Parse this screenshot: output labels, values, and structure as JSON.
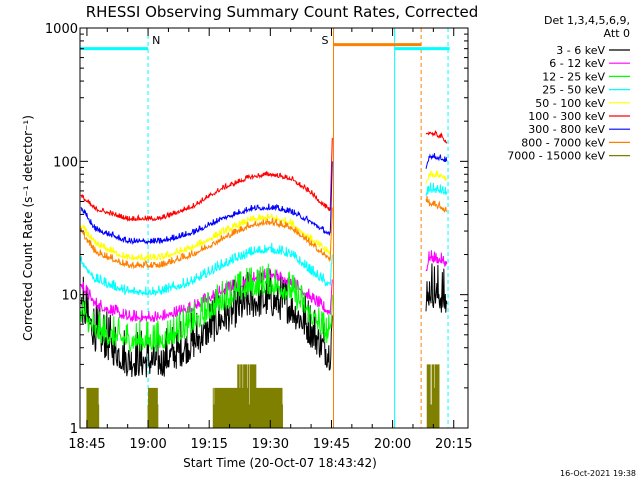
{
  "chart_data": {
    "type": "line",
    "title": "RHESSI Observing Summary Count Rates, Corrected",
    "xlabel": "Start Time (20-Oct-07 18:43:42)",
    "ylabel": "Corrected Count Rate (s⁻¹ detector⁻¹)",
    "ylog": true,
    "ylim": [
      1,
      1000
    ],
    "xlim_minutes": [
      -1.7,
      93.5
    ],
    "x_ticks": [
      {
        "label": "18:45",
        "t": 0
      },
      {
        "label": "19:00",
        "t": 15
      },
      {
        "label": "19:15",
        "t": 30
      },
      {
        "label": "19:30",
        "t": 45
      },
      {
        "label": "19:45",
        "t": 60
      },
      {
        "label": "20:00",
        "t": 75
      },
      {
        "label": "20:15",
        "t": 90
      }
    ],
    "y_ticks": [
      {
        "label": "1",
        "v": 1
      },
      {
        "label": "10",
        "v": 10
      },
      {
        "label": "100",
        "v": 100
      },
      {
        "label": "1000",
        "v": 1000
      }
    ],
    "legend_header": [
      "Det 1,3,4,5,6,9,",
      "Att 0"
    ],
    "legend_position": "right",
    "series": [
      {
        "name": "3 - 6 keV",
        "color": "#000000",
        "orbit1": [
          [
            -1.5,
            8.5
          ],
          [
            2,
            5
          ],
          [
            10,
            3.2
          ],
          [
            18,
            3.1
          ],
          [
            26,
            4.3
          ],
          [
            33,
            6.5
          ],
          [
            40,
            8.7
          ],
          [
            45,
            9
          ],
          [
            50,
            8
          ],
          [
            55,
            5.3
          ],
          [
            59,
            3.7
          ],
          [
            59.7,
            3.6
          ],
          [
            60.2,
            7
          ]
        ],
        "orbit2": [
          [
            83.2,
            7.5
          ],
          [
            84,
            11
          ],
          [
            87,
            9.5
          ],
          [
            88.3,
            8.5
          ]
        ],
        "noise": 0.25
      },
      {
        "name": "6 - 12 keV",
        "color": "#ff00ff",
        "orbit1": [
          [
            -1.5,
            12
          ],
          [
            2,
            8.5
          ],
          [
            10,
            6.7
          ],
          [
            18,
            6.7
          ],
          [
            26,
            8
          ],
          [
            33,
            10.5
          ],
          [
            40,
            13
          ],
          [
            45,
            14
          ],
          [
            50,
            12.6
          ],
          [
            55,
            9.4
          ],
          [
            59,
            7.5
          ],
          [
            59.7,
            7.4
          ],
          [
            60.2,
            13
          ]
        ],
        "orbit2": [
          [
            83.2,
            15
          ],
          [
            84,
            19
          ],
          [
            87,
            18
          ],
          [
            88.3,
            17
          ]
        ],
        "noise": 0.06
      },
      {
        "name": "12 - 25 keV",
        "color": "#00ff00",
        "orbit1": [
          [
            -1.5,
            7.5
          ],
          [
            2,
            5.3
          ],
          [
            10,
            4.5
          ],
          [
            18,
            4.5
          ],
          [
            26,
            6
          ],
          [
            33,
            9
          ],
          [
            40,
            11.5
          ],
          [
            45,
            12
          ],
          [
            50,
            10.5
          ],
          [
            55,
            7
          ],
          [
            59,
            5
          ],
          [
            59.7,
            5
          ],
          [
            60.2,
            10
          ]
        ],
        "orbit2": [],
        "noise": 0.16
      },
      {
        "name": "25 - 50 keV",
        "color": "#00ffff",
        "orbit1": [
          [
            -1.5,
            18
          ],
          [
            2,
            13
          ],
          [
            10,
            10.5
          ],
          [
            18,
            10.5
          ],
          [
            26,
            12.5
          ],
          [
            33,
            16.5
          ],
          [
            40,
            20.5
          ],
          [
            45,
            22
          ],
          [
            50,
            20
          ],
          [
            55,
            15
          ],
          [
            59,
            12
          ],
          [
            59.7,
            11.8
          ],
          [
            60.2,
            20
          ]
        ],
        "orbit2": [
          [
            83.2,
            55
          ],
          [
            84,
            62
          ],
          [
            87,
            60
          ],
          [
            88.3,
            57
          ]
        ],
        "noise": 0.05
      },
      {
        "name": "50 - 100 keV",
        "color": "#ffff00",
        "orbit1": [
          [
            -1.5,
            33
          ],
          [
            2,
            24
          ],
          [
            10,
            18.8
          ],
          [
            18,
            18.8
          ],
          [
            26,
            22.5
          ],
          [
            33,
            29
          ],
          [
            40,
            36
          ],
          [
            45,
            38
          ],
          [
            50,
            34.5
          ],
          [
            55,
            26
          ],
          [
            59,
            21
          ],
          [
            59.7,
            20.5
          ],
          [
            60.2,
            40
          ]
        ],
        "orbit2": [
          [
            83.2,
            68
          ],
          [
            84,
            80
          ],
          [
            87,
            78
          ],
          [
            88.3,
            74
          ]
        ],
        "noise": 0.035
      },
      {
        "name": "100 - 300 keV",
        "color": "#ff0000",
        "orbit1": [
          [
            -1.5,
            55
          ],
          [
            2,
            44
          ],
          [
            10,
            37
          ],
          [
            18,
            37
          ],
          [
            26,
            46
          ],
          [
            33,
            62
          ],
          [
            40,
            76
          ],
          [
            45,
            80
          ],
          [
            50,
            74
          ],
          [
            55,
            58
          ],
          [
            59,
            44
          ],
          [
            59.7,
            42
          ],
          [
            60.2,
            150
          ]
        ],
        "orbit2": [
          [
            83.2,
            160
          ],
          [
            84,
            165
          ],
          [
            87,
            152
          ],
          [
            88.3,
            140
          ]
        ],
        "noise": 0.025
      },
      {
        "name": "300 - 800 keV",
        "color": "#0000ff",
        "orbit1": [
          [
            -1.5,
            45
          ],
          [
            2,
            31
          ],
          [
            10,
            25
          ],
          [
            18,
            25
          ],
          [
            26,
            29
          ],
          [
            33,
            37
          ],
          [
            40,
            44
          ],
          [
            45,
            45
          ],
          [
            50,
            42
          ],
          [
            55,
            35
          ],
          [
            59,
            29
          ],
          [
            59.7,
            27
          ],
          [
            60.2,
            100
          ]
        ],
        "orbit2": [
          [
            83.2,
            88
          ],
          [
            84,
            110
          ],
          [
            87,
            105
          ],
          [
            88.3,
            100
          ]
        ],
        "noise": 0.03
      },
      {
        "name": "800 - 7000 keV",
        "color": "#ff8000",
        "orbit1": [
          [
            -1.5,
            30
          ],
          [
            2,
            21
          ],
          [
            10,
            16.5
          ],
          [
            18,
            16.5
          ],
          [
            26,
            20
          ],
          [
            33,
            26
          ],
          [
            40,
            33
          ],
          [
            45,
            35
          ],
          [
            50,
            32
          ],
          [
            55,
            24
          ],
          [
            59,
            19
          ],
          [
            59.7,
            18.5
          ],
          [
            60.2,
            45
          ]
        ],
        "orbit2": [
          [
            83.2,
            52
          ],
          [
            84,
            48
          ],
          [
            87,
            45
          ],
          [
            88.3,
            42
          ]
        ],
        "noise": 0.035
      },
      {
        "name": "7000 - 15000 keV",
        "color": "#808000",
        "orbit1": [],
        "orbit2": [],
        "noise": 0
      }
    ],
    "lines_7000": {
      "baseline": 1,
      "level1": 2,
      "level2": 3,
      "blocks": [
        [
          0,
          3,
          2
        ],
        [
          15,
          17.5,
          2
        ],
        [
          31,
          37,
          2
        ],
        [
          37,
          41.5,
          3
        ],
        [
          41.5,
          48,
          2
        ]
      ],
      "block2": [
        83.5,
        86.5,
        3
      ]
    },
    "annotations": [
      {
        "label": "N",
        "t": 15
      },
      {
        "label": "S",
        "t": 60.5
      }
    ],
    "flag_bars": [
      {
        "t0": -1.7,
        "t1": 15,
        "level": 700,
        "color": "#00ffff"
      },
      {
        "t0": 60.5,
        "t1": 82,
        "level": 750,
        "color": "#ff8000"
      },
      {
        "t0": 75.5,
        "t1": 89,
        "level": 700,
        "color": "#00ffff"
      }
    ],
    "vlines": [
      {
        "t": -1.7,
        "color": "#00ffff",
        "dash": false
      },
      {
        "t": 15,
        "color": "#00ffff",
        "dash": true
      },
      {
        "t": 60.5,
        "color": "#ff8000",
        "dash": false
      },
      {
        "t": 75.5,
        "color": "#00ffff",
        "dash": false
      },
      {
        "t": 82,
        "color": "#ff8000",
        "dash": true
      },
      {
        "t": 88.6,
        "color": "#00ffff",
        "dash": true
      }
    ],
    "timestamp": "16-Oct-2021 19:38"
  }
}
